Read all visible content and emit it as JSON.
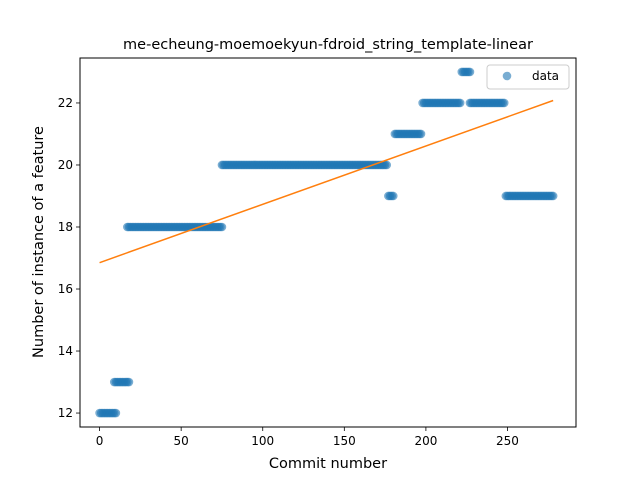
{
  "chart_data": {
    "type": "scatter",
    "title": "me-echeung-moemoekyun-fdroid_string_template-linear",
    "xlabel": "Commit number",
    "ylabel": "Number of instance of a feature",
    "xlim": [
      -12,
      292
    ],
    "ylim": [
      11.55,
      23.45
    ],
    "xticks": [
      0,
      50,
      100,
      150,
      200,
      250
    ],
    "yticks": [
      12,
      14,
      16,
      18,
      20,
      22
    ],
    "grid": false,
    "legend": {
      "position": "top-right",
      "entries": [
        "data"
      ]
    },
    "colors": {
      "data": "#1f77b4",
      "fit": "#ff7f0e"
    },
    "series": [
      {
        "name": "data",
        "kind": "scatter",
        "segments": [
          {
            "x_start": 0,
            "x_end": 10,
            "y": 12
          },
          {
            "x_start": 9,
            "x_end": 18,
            "y": 13
          },
          {
            "x_start": 17,
            "x_end": 75,
            "y": 18
          },
          {
            "x_start": 75,
            "x_end": 176,
            "y": 20
          },
          {
            "x_start": 177,
            "x_end": 180,
            "y": 19
          },
          {
            "x_start": 181,
            "x_end": 197,
            "y": 21
          },
          {
            "x_start": 198,
            "x_end": 221,
            "y": 22
          },
          {
            "x_start": 222,
            "x_end": 227,
            "y": 23
          },
          {
            "x_start": 227,
            "x_end": 248,
            "y": 22
          },
          {
            "x_start": 249,
            "x_end": 278,
            "y": 19
          }
        ]
      },
      {
        "kind": "line",
        "x": [
          0,
          278
        ],
        "y": [
          16.85,
          22.08
        ]
      }
    ]
  }
}
